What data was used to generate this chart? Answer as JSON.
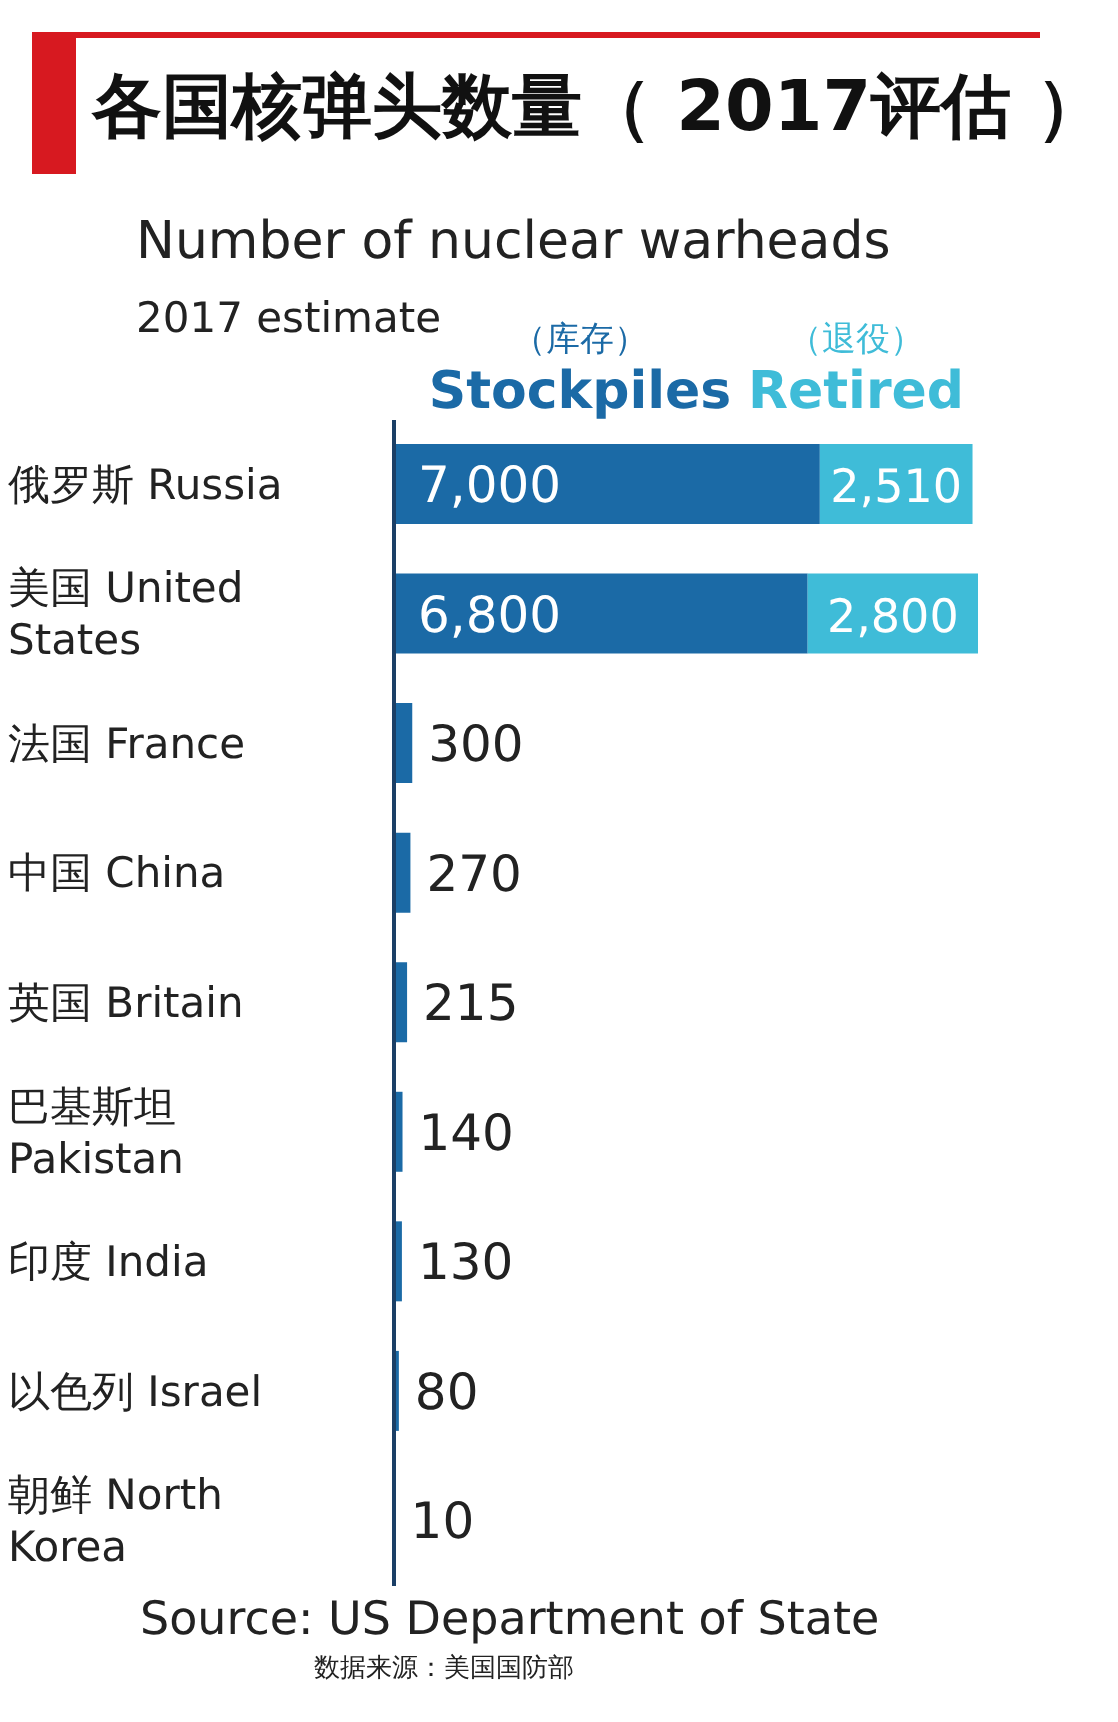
{
  "chart_data": {
    "type": "bar",
    "orientation": "horizontal",
    "stacked": true,
    "title": "各国核弹头数量（ 2017评估 ）",
    "subtitle": "Number of nuclear warheads",
    "categories": [
      "俄罗斯 Russia",
      "美国 United States",
      "法国 France",
      "中国 China",
      "英国 Britain",
      "巴基斯坦 Pakistan",
      "印度 India",
      "以色列 Israel",
      "朝鲜 North Korea"
    ],
    "series": [
      {
        "name": "（库存） Stockpiles",
        "color": "#1b6aa6",
        "values": [
          7000,
          6800,
          300,
          270,
          215,
          140,
          130,
          80,
          10
        ],
        "value_labels": [
          "7,000",
          "6,800",
          "300",
          "270",
          "215",
          "140",
          "130",
          "80",
          "10"
        ]
      },
      {
        "name": "（退役） Retired",
        "color": "#3fbcd8",
        "values": [
          2510,
          2800,
          null,
          null,
          null,
          null,
          null,
          null,
          null
        ],
        "value_labels": [
          "2,510",
          "2,800",
          null,
          null,
          null,
          null,
          null,
          null,
          null
        ]
      }
    ],
    "annotations": [
      "2017 estimate",
      "Source: US Department of State",
      "数据来源：美国国防部"
    ]
  }
}
